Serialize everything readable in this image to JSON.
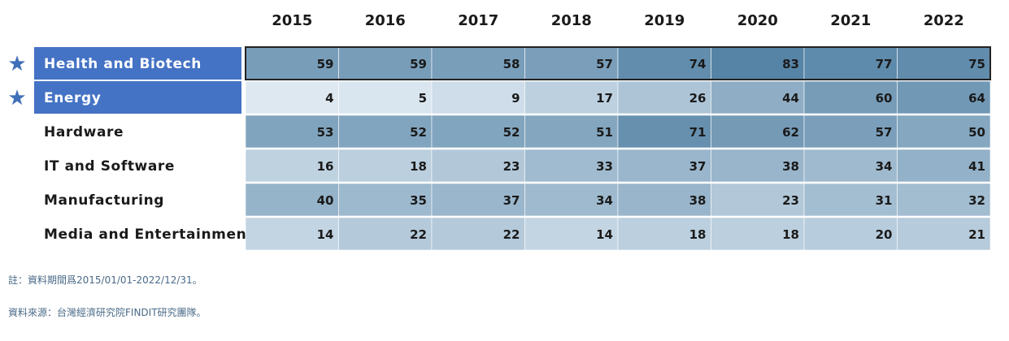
{
  "chart_data": {
    "type": "heatmap",
    "columns": [
      "2015",
      "2016",
      "2017",
      "2018",
      "2019",
      "2020",
      "2021",
      "2022"
    ],
    "rows": [
      {
        "label": "Health and Biotech",
        "highlighted": true,
        "values": [
          59,
          59,
          58,
          57,
          74,
          83,
          77,
          75
        ]
      },
      {
        "label": "Energy",
        "highlighted": true,
        "values": [
          4,
          5,
          9,
          17,
          26,
          44,
          60,
          64
        ]
      },
      {
        "label": "Hardware",
        "highlighted": false,
        "values": [
          53,
          52,
          52,
          51,
          71,
          62,
          57,
          50
        ]
      },
      {
        "label": "IT and Software",
        "highlighted": false,
        "values": [
          16,
          18,
          23,
          33,
          37,
          38,
          34,
          41
        ]
      },
      {
        "label": "Manufacturing",
        "highlighted": false,
        "values": [
          40,
          35,
          37,
          34,
          38,
          23,
          31,
          32
        ]
      },
      {
        "label": "Media and Entertainment",
        "highlighted": false,
        "values": [
          14,
          22,
          22,
          14,
          18,
          18,
          20,
          21
        ]
      }
    ],
    "highlight_marker_icon": "star-icon",
    "colors": {
      "highlight_label_bg": "#4472c4",
      "highlight_label_text": "#ffffff",
      "label_text": "#1a1a1a",
      "star": "#3f6fb8",
      "cell_low": "#dde8f1",
      "cell_high": "#5684a6",
      "highlight_row_border": "#222222",
      "cell_divider": "#ffffff"
    }
  },
  "notes": {
    "period": "註：資料期間爲2015/01/01-2022/12/31。",
    "source": "資料來源：台灣經濟研究院FINDIT研究團隊。"
  }
}
